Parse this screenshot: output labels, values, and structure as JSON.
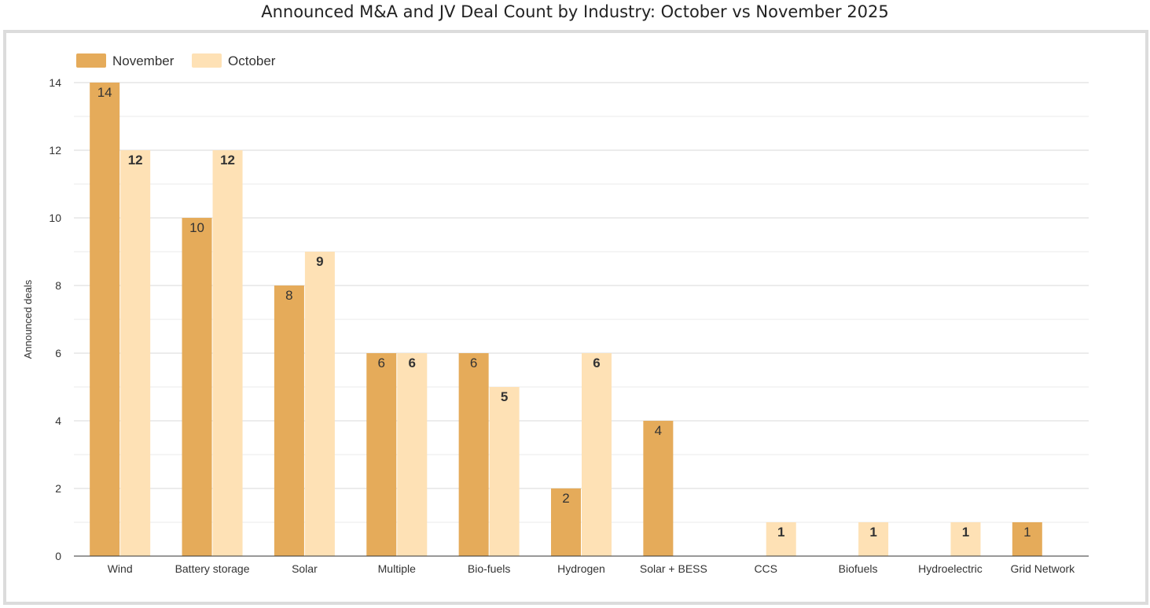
{
  "chart_data": {
    "type": "bar",
    "title": "Announced M&A and JV Deal Count by Industry: October vs November 2025",
    "xlabel": "",
    "ylabel": "Announced deals",
    "ylim": [
      0,
      14
    ],
    "yticks": [
      0,
      2,
      4,
      6,
      8,
      10,
      12,
      14
    ],
    "grid": true,
    "legend_position": "top-left",
    "categories": [
      "Wind",
      "Battery storage",
      "Solar",
      "Multiple",
      "Bio-fuels",
      "Hydrogen",
      "Solar + BESS",
      "CCS",
      "Biofuels",
      "Hydroelectric",
      "Grid Network"
    ],
    "series": [
      {
        "name": "November",
        "color": "#e5ab5a",
        "values": [
          14,
          10,
          8,
          6,
          6,
          2,
          4,
          null,
          null,
          null,
          1
        ]
      },
      {
        "name": "October",
        "color": "#fee1b5",
        "values": [
          12,
          12,
          9,
          6,
          5,
          6,
          null,
          1,
          1,
          1,
          null
        ]
      }
    ]
  }
}
